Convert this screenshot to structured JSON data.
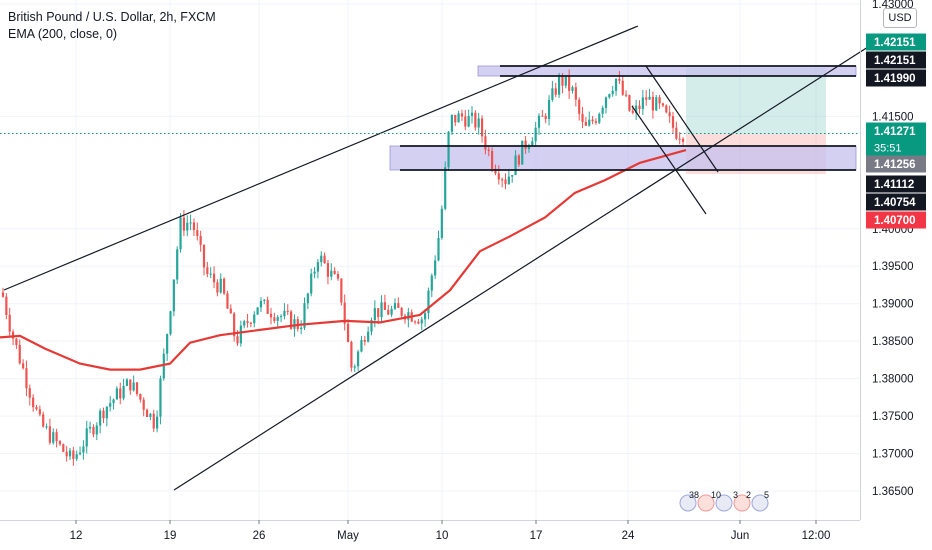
{
  "chart_data": {
    "type": "candlestick",
    "title": "British Pound / U.S. Dollar, 2h, FXCM",
    "indicator": "EMA (200, close, 0)",
    "currency_button": "USD",
    "y_ticks": [
      "1.43000",
      "1.41500",
      "1.40000",
      "1.39500",
      "1.39000",
      "1.38500",
      "1.38000",
      "1.37500",
      "1.37000",
      "1.36500"
    ],
    "x_ticks": [
      "12",
      "19",
      "26",
      "May",
      "10",
      "17",
      "24",
      "Jun",
      "12:00"
    ],
    "ylim": [
      1.3615,
      1.4309
    ],
    "price_labels": [
      {
        "text": "1.42151",
        "style": "teal",
        "value": 1.42151
      },
      {
        "text": "1.42151",
        "style": "black",
        "value": 1.42151
      },
      {
        "text": "1.41990",
        "style": "black",
        "value": 1.4199
      },
      {
        "text": "1.41271",
        "style": "teal",
        "value": 1.41271,
        "countdown": "35:51"
      },
      {
        "text": "1.41256",
        "style": "gray",
        "value": 1.41256
      },
      {
        "text": "1.41112",
        "style": "black",
        "value": 1.41112
      },
      {
        "text": "1.40754",
        "style": "black",
        "value": 1.40754
      },
      {
        "text": "1.40700",
        "style": "red",
        "value": 1.407
      }
    ],
    "events": [
      "38",
      "10",
      "3",
      "2",
      "5"
    ],
    "colors": {
      "up": "#26a69a",
      "down": "#ef5350",
      "ema": "#e53935",
      "teal": "#089981",
      "zone": "#c5c0ee"
    }
  }
}
